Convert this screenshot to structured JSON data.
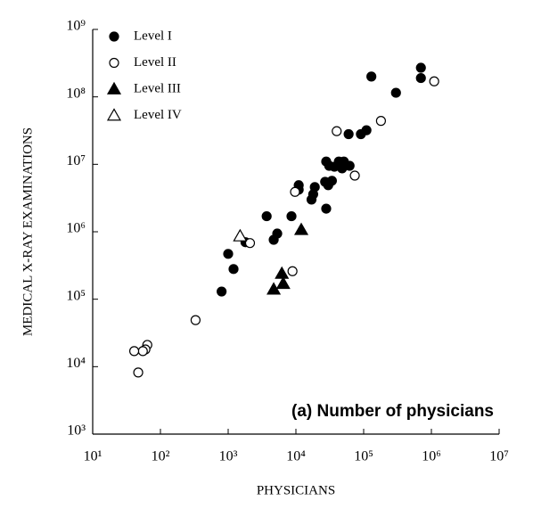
{
  "chart_data": {
    "type": "scatter",
    "x_label": "PHYSICIANS",
    "y_label": "MEDICAL X-RAY EXAMINATIONS",
    "annotation": "(a) Number of physicians",
    "log_x": true,
    "log_y": true,
    "xlim": [
      10,
      10000000
    ],
    "ylim": [
      1000,
      1000000000
    ],
    "xticks": [
      {
        "value": 10,
        "label": "10¹"
      },
      {
        "value": 100,
        "label": "10²"
      },
      {
        "value": 1000,
        "label": "10³"
      },
      {
        "value": 10000,
        "label": "10⁴"
      },
      {
        "value": 100000,
        "label": "10⁵"
      },
      {
        "value": 1000000,
        "label": "10⁶"
      },
      {
        "value": 10000000,
        "label": "10⁷"
      }
    ],
    "yticks": [
      {
        "value": 1000,
        "label": "10³"
      },
      {
        "value": 10000,
        "label": "10⁴"
      },
      {
        "value": 100000,
        "label": "10⁵"
      },
      {
        "value": 1000000,
        "label": "10⁶"
      },
      {
        "value": 10000000,
        "label": "10⁷"
      },
      {
        "value": 100000000,
        "label": "10⁸"
      },
      {
        "value": 1000000000,
        "label": "10⁹"
      }
    ],
    "legend_position": "upper left",
    "series": [
      {
        "name": "Level I",
        "marker": "circle",
        "filled": true,
        "color": "#000000",
        "x": [
          700000,
          700000,
          130000,
          300000,
          60000,
          91000,
          110000,
          43000,
          51000,
          48000,
          62000,
          37000,
          31000,
          28000,
          34000,
          27000,
          30000,
          28000,
          19000,
          18000,
          17000,
          11000,
          11000,
          8600,
          3700,
          5300,
          4700,
          1000,
          1200,
          800,
          1800
        ],
        "y": [
          270000000,
          190000000,
          200000000,
          115000000,
          28000000,
          28000000,
          32000000,
          11000000,
          11000000,
          8700000,
          9500000,
          9200000,
          9500000,
          11000000,
          5700000,
          5500000,
          4900000,
          2200000,
          4600000,
          3600000,
          3000000,
          4900000,
          4200000,
          1700000,
          1700000,
          940000,
          760000,
          470000,
          280000,
          130000,
          700000
        ]
      },
      {
        "name": "Level II",
        "marker": "circle",
        "filled": false,
        "color": "#000000",
        "x": [
          1100000,
          180000,
          40000,
          74000,
          9700,
          2100,
          8900,
          330,
          64,
          60,
          55,
          41,
          47
        ],
        "y": [
          170000000,
          44000000,
          31000000,
          6800000,
          3900000,
          680000,
          260000,
          49000,
          21000,
          18000,
          17000,
          17000,
          8200
        ]
      },
      {
        "name": "Level III",
        "marker": "triangle",
        "filled": true,
        "color": "#000000",
        "x": [
          12000,
          6200,
          6500,
          4700
        ],
        "y": [
          1070000,
          240000,
          170000,
          140000
        ]
      },
      {
        "name": "Level IV",
        "marker": "triangle",
        "filled": false,
        "color": "#000000",
        "x": [
          1500
        ],
        "y": [
          860000
        ]
      }
    ]
  }
}
